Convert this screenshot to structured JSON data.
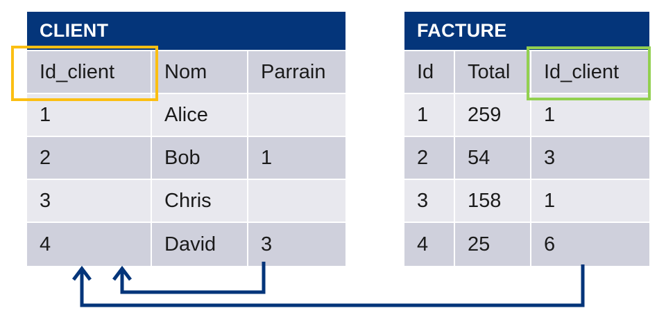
{
  "client_table": {
    "title": "CLIENT",
    "headers": [
      "Id_client",
      "Nom",
      "Parrain"
    ],
    "rows": [
      [
        "1",
        "Alice",
        ""
      ],
      [
        "2",
        "Bob",
        "1"
      ],
      [
        "3",
        "Chris",
        ""
      ],
      [
        "4",
        "David",
        "3"
      ]
    ]
  },
  "facture_table": {
    "title": "FACTURE",
    "headers": [
      "Id",
      "Total",
      "Id_client"
    ],
    "rows": [
      [
        "1",
        "259",
        "1"
      ],
      [
        "2",
        "54",
        "3"
      ],
      [
        "3",
        "158",
        "1"
      ],
      [
        "4",
        "25",
        "6"
      ]
    ]
  },
  "colors": {
    "header_bg": "#04357a",
    "row_dark": "#cfd0dc",
    "row_light": "#e8e8ee",
    "client_key_highlight": "#fbbf13",
    "facture_key_highlight": "#92d050",
    "arrow": "#04357a"
  }
}
